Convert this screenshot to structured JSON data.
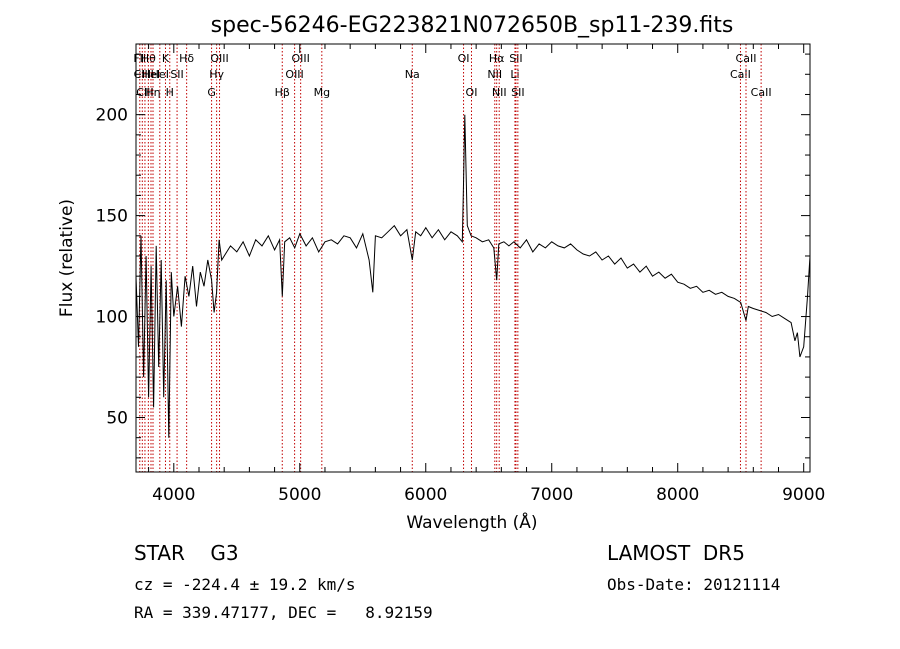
{
  "chart_data": {
    "type": "line",
    "title": "spec-56246-EG223821N072650B_sp11-239.fits",
    "xlabel": "Wavelength (Å)",
    "ylabel": "Flux (relative)",
    "xlim": [
      3700,
      9050
    ],
    "ylim": [
      23,
      235
    ],
    "xticks": [
      4000,
      5000,
      6000,
      7000,
      8000,
      9000
    ],
    "yticks": [
      50,
      100,
      150,
      200
    ],
    "grid": false,
    "line_color": "#000000",
    "marker_color": "#c00000",
    "series": [
      {
        "x": [
          3700,
          3720,
          3740,
          3760,
          3780,
          3800,
          3820,
          3840,
          3860,
          3880,
          3900,
          3920,
          3940,
          3960,
          3980,
          4000,
          4030,
          4060,
          4090,
          4120,
          4150,
          4180,
          4210,
          4240,
          4270,
          4300,
          4320,
          4340,
          4360,
          4380,
          4400,
          4450,
          4500,
          4550,
          4600,
          4650,
          4700,
          4750,
          4800,
          4840,
          4861,
          4880,
          4920,
          4960,
          5000,
          5050,
          5100,
          5150,
          5200,
          5250,
          5300,
          5350,
          5400,
          5450,
          5500,
          5550,
          5580,
          5600,
          5650,
          5700,
          5750,
          5800,
          5850,
          5893,
          5920,
          5960,
          6000,
          6050,
          6100,
          6150,
          6200,
          6250,
          6290,
          6300,
          6310,
          6330,
          6360,
          6400,
          6450,
          6500,
          6540,
          6563,
          6580,
          6620,
          6660,
          6700,
          6750,
          6800,
          6850,
          6900,
          6950,
          7000,
          7050,
          7100,
          7150,
          7200,
          7250,
          7300,
          7350,
          7400,
          7450,
          7500,
          7550,
          7600,
          7650,
          7700,
          7750,
          7800,
          7850,
          7900,
          7950,
          8000,
          8050,
          8100,
          8150,
          8200,
          8250,
          8300,
          8350,
          8400,
          8450,
          8500,
          8542,
          8560,
          8600,
          8650,
          8700,
          8750,
          8800,
          8850,
          8900,
          8930,
          8950,
          8970,
          9000,
          9030,
          9050
        ],
        "y": [
          120,
          85,
          140,
          70,
          130,
          60,
          125,
          55,
          135,
          75,
          128,
          60,
          118,
          40,
          122,
          100,
          115,
          95,
          120,
          110,
          125,
          105,
          122,
          115,
          128,
          118,
          102,
          112,
          138,
          128,
          130,
          135,
          132,
          137,
          130,
          138,
          135,
          140,
          133,
          138,
          110,
          137,
          139,
          134,
          141,
          135,
          139,
          132,
          137,
          138,
          136,
          140,
          139,
          134,
          141,
          128,
          112,
          140,
          139,
          142,
          145,
          140,
          143,
          128,
          142,
          140,
          144,
          139,
          143,
          138,
          142,
          140,
          137,
          168,
          200,
          145,
          140,
          139,
          137,
          138,
          134,
          118,
          136,
          137,
          135,
          137,
          134,
          138,
          132,
          136,
          134,
          137,
          135,
          134,
          136,
          133,
          131,
          130,
          132,
          128,
          130,
          126,
          129,
          124,
          126,
          122,
          125,
          120,
          122,
          119,
          121,
          117,
          116,
          114,
          115,
          112,
          113,
          111,
          112,
          110,
          109,
          107,
          98,
          105,
          104,
          103,
          102,
          100,
          101,
          99,
          97,
          88,
          92,
          80,
          85,
          110,
          130
        ]
      }
    ],
    "lines": [
      {
        "wl": 3730,
        "label": "FII",
        "row": 1
      },
      {
        "wl": 3750,
        "label": "CIII",
        "row": 2
      },
      {
        "wl": 3771,
        "label": "CIII",
        "row": 3
      },
      {
        "wl": 3798,
        "label": "Hθ",
        "row": 1
      },
      {
        "wl": 3819,
        "label": "HeI",
        "row": 2
      },
      {
        "wl": 3835,
        "label": "Hη",
        "row": 3
      },
      {
        "wl": 3889,
        "label": "HeI",
        "row": 2
      },
      {
        "wl": 3934,
        "label": "K",
        "row": 1
      },
      {
        "wl": 3968,
        "label": "H",
        "row": 3
      },
      {
        "wl": 4026,
        "label": "SII",
        "row": 2
      },
      {
        "wl": 4102,
        "label": "Hδ",
        "row": 1
      },
      {
        "wl": 4300,
        "label": "G",
        "row": 3
      },
      {
        "wl": 4340,
        "label": "Hγ",
        "row": 2
      },
      {
        "wl": 4363,
        "label": "OIII",
        "row": 1
      },
      {
        "wl": 4861,
        "label": "Hβ",
        "row": 3
      },
      {
        "wl": 4959,
        "label": "OIII",
        "row": 2
      },
      {
        "wl": 5007,
        "label": "OIII",
        "row": 1
      },
      {
        "wl": 5175,
        "label": "Mg",
        "row": 3
      },
      {
        "wl": 5893,
        "label": "Na",
        "row": 2
      },
      {
        "wl": 6300,
        "label": "OI",
        "row": 1
      },
      {
        "wl": 6363,
        "label": "OI",
        "row": 3
      },
      {
        "wl": 6548,
        "label": "NII",
        "row": 2
      },
      {
        "wl": 6563,
        "label": "Hα",
        "row": 1
      },
      {
        "wl": 6583,
        "label": "NII",
        "row": 3
      },
      {
        "wl": 6708,
        "label": "Li",
        "row": 2
      },
      {
        "wl": 6716,
        "label": "SII",
        "row": 1
      },
      {
        "wl": 6731,
        "label": "SII",
        "row": 3
      },
      {
        "wl": 8498,
        "label": "CaII",
        "row": 2
      },
      {
        "wl": 8542,
        "label": "CaII",
        "row": 1
      },
      {
        "wl": 8662,
        "label": "CaII",
        "row": 3
      }
    ]
  },
  "info": {
    "object_class": "STAR    G3",
    "survey": "LAMOST  DR5",
    "cz": "cz = -224.4 ± 19.2 km/s",
    "obs_date": "Obs-Date: 20121114",
    "radec": "RA = 339.47177, DEC =   8.92159"
  }
}
